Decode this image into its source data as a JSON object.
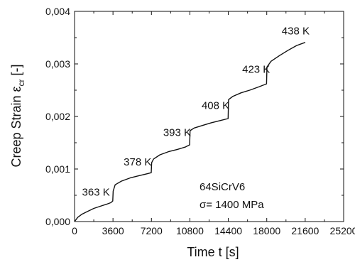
{
  "chart_data": {
    "type": "line",
    "xlabel": "Time t [s]",
    "ylabel_prefix": "Creep Strain ",
    "ylabel_symbol": "ε",
    "ylabel_subscript": "cr",
    "ylabel_suffix": " [-]",
    "xlim": [
      0,
      25200
    ],
    "ylim": [
      0,
      0.004
    ],
    "x_ticks": [
      0,
      3600,
      7200,
      10800,
      14400,
      18000,
      21600,
      25200
    ],
    "x_tick_labels": [
      "0",
      "3600",
      "7200",
      "10800",
      "14400",
      "18000",
      "21600",
      "25200"
    ],
    "y_ticks": [
      0,
      0.001,
      0.002,
      0.003,
      0.004
    ],
    "y_tick_labels": [
      "0,000",
      "0,001",
      "0,002",
      "0,003",
      "0,004"
    ],
    "grid": false,
    "series": [
      {
        "x": [
          0,
          300,
          700,
          1200,
          1800,
          2400,
          3000,
          3400,
          3580,
          3620,
          3800,
          4400,
          5200,
          6000,
          6800,
          7180,
          7220,
          7400,
          8000,
          8800,
          9600,
          10400,
          10780,
          10820,
          11200,
          12000,
          12800,
          13600,
          14380,
          14420,
          14800,
          15600,
          16400,
          17200,
          17980,
          18020,
          18400,
          19200,
          20000,
          20800,
          21600
        ],
        "y": [
          0.0,
          8e-05,
          0.00014,
          0.00019,
          0.00025,
          0.00029,
          0.00033,
          0.00036,
          0.00039,
          0.00058,
          0.0007,
          0.00077,
          0.00083,
          0.00087,
          0.00091,
          0.00093,
          0.00112,
          0.00119,
          0.00127,
          0.00133,
          0.00137,
          0.00142,
          0.00146,
          0.00173,
          0.00178,
          0.00183,
          0.00188,
          0.00192,
          0.00196,
          0.00232,
          0.00238,
          0.00245,
          0.0025,
          0.00256,
          0.00262,
          0.00294,
          0.00305,
          0.00316,
          0.00326,
          0.00335,
          0.00341
        ]
      }
    ],
    "annotations": [
      {
        "text": "363 K",
        "x": 700,
        "y": 0.00049
      },
      {
        "text": "378 K",
        "x": 4600,
        "y": 0.00107
      },
      {
        "text": "393 K",
        "x": 8300,
        "y": 0.00163
      },
      {
        "text": "408 K",
        "x": 11900,
        "y": 0.00214
      },
      {
        "text": "423 K",
        "x": 15700,
        "y": 0.00283
      },
      {
        "text": "438 K",
        "x": 19400,
        "y": 0.00356
      }
    ],
    "info_lines": [
      "64SiCrV6",
      "σ= 1400 MPa"
    ]
  }
}
